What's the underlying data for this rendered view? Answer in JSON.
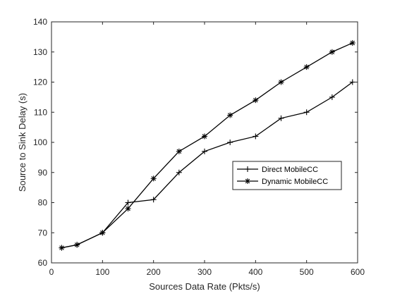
{
  "chart_data": {
    "type": "line",
    "title": "",
    "xlabel": "Sources Data Rate (Pkts/s)",
    "ylabel": "Source to Sink Delay (s)",
    "xlim": [
      0,
      600
    ],
    "ylim": [
      60,
      140
    ],
    "xticks": [
      0,
      100,
      200,
      300,
      400,
      500,
      600
    ],
    "yticks": [
      60,
      70,
      80,
      90,
      100,
      110,
      120,
      130,
      140
    ],
    "grid": false,
    "legend_position": "center-right",
    "line_color": "#000000",
    "series": [
      {
        "name": "Direct MobileCC",
        "marker": "plus",
        "x": [
          20,
          50,
          100,
          150,
          200,
          250,
          300,
          350,
          400,
          450,
          500,
          550,
          590
        ],
        "y": [
          65,
          66,
          70,
          80,
          81,
          90,
          97,
          100,
          102,
          108,
          110,
          115,
          120
        ]
      },
      {
        "name": "Dynamic MobileCC",
        "marker": "asterisk",
        "x": [
          20,
          50,
          100,
          150,
          200,
          250,
          300,
          350,
          400,
          450,
          500,
          550,
          590
        ],
        "y": [
          65,
          66,
          70,
          78,
          88,
          97,
          102,
          109,
          114,
          120,
          125,
          130,
          133
        ]
      }
    ]
  }
}
